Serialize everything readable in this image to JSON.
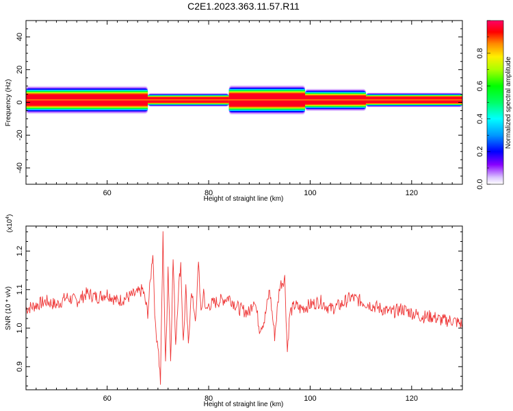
{
  "title": "C2E1.2023.363.11.57.R11",
  "chart_data": [
    {
      "type": "heatmap",
      "x": {
        "label": "Height of straight line (km)",
        "lim": [
          44,
          130
        ],
        "ticks": [
          60,
          80,
          100,
          120
        ]
      },
      "y": {
        "label": "Frequency (Hz)",
        "lim": [
          -50,
          50
        ],
        "ticks": [
          -40,
          -20,
          0,
          20,
          40
        ]
      },
      "colorbar": {
        "label": "Normalized spectral amplitude",
        "lim": [
          0,
          1
        ],
        "ticks": [
          0.0,
          0.2,
          0.4,
          0.6,
          0.8
        ],
        "tick_labels": [
          "0.0",
          "0.2",
          "0.4",
          "0.6",
          "0.8"
        ]
      },
      "band": {
        "center_hz": 1.5,
        "segments": [
          {
            "x": [
              44,
              68
            ],
            "half_width_hz": 2.5,
            "halo_hz": 6
          },
          {
            "x": [
              68,
              84
            ],
            "half_width_hz": 1.2,
            "halo_hz": 3
          },
          {
            "x": [
              84,
              99
            ],
            "half_width_hz": 3.0,
            "halo_hz": 6
          },
          {
            "x": [
              99,
              111
            ],
            "half_width_hz": 1.8,
            "halo_hz": 5
          },
          {
            "x": [
              111,
              130
            ],
            "half_width_hz": 1.5,
            "halo_hz": 3
          }
        ],
        "peak_amplitude": 0.95
      }
    },
    {
      "type": "line",
      "x": {
        "label": "Height of straight line (km)",
        "lim": [
          44,
          130
        ],
        "ticks": [
          60,
          80,
          100,
          120
        ]
      },
      "y": {
        "label": "SNR (10 * v/v)",
        "multiplier_label": "(x10",
        "multiplier_exp": "4",
        "multiplier_close": ")",
        "lim": [
          0.84,
          1.265
        ],
        "ticks": [
          0.9,
          1.0,
          1.1,
          1.2
        ],
        "tick_labels": [
          "0.9",
          "1.0",
          "1.1",
          "1.2"
        ]
      },
      "series": [
        {
          "color": "#ee3333",
          "x": [
            44,
            46,
            48,
            50,
            52,
            54,
            56,
            58,
            60,
            62,
            64,
            66,
            67,
            68,
            69,
            69.5,
            70,
            70.5,
            71,
            71.5,
            72,
            72.5,
            73,
            73.5,
            74,
            74.5,
            75,
            75.5,
            76,
            76.5,
            77,
            77.5,
            78,
            78.5,
            79,
            79.5,
            80,
            82,
            84,
            86,
            88,
            89,
            90,
            91,
            92,
            93,
            94,
            95,
            95.5,
            96,
            97,
            98,
            100,
            102,
            104,
            106,
            108,
            110,
            112,
            114,
            116,
            118,
            120,
            122,
            124,
            126,
            128,
            130
          ],
          "y": [
            1.05,
            1.06,
            1.07,
            1.06,
            1.08,
            1.07,
            1.09,
            1.08,
            1.09,
            1.07,
            1.08,
            1.09,
            1.1,
            1.04,
            1.2,
            1.0,
            0.96,
            0.86,
            1.24,
            0.9,
            1.16,
            0.92,
            1.18,
            0.96,
            1.09,
            1.17,
            0.96,
            1.1,
            0.95,
            1.09,
            1.06,
            1.02,
            1.18,
            1.03,
            1.1,
            1.04,
            1.06,
            1.07,
            1.08,
            1.05,
            1.04,
            1.08,
            1.0,
            1.02,
            1.1,
            0.98,
            1.11,
            1.13,
            0.94,
            1.04,
            1.06,
            1.05,
            1.06,
            1.07,
            1.05,
            1.06,
            1.08,
            1.07,
            1.06,
            1.05,
            1.04,
            1.05,
            1.04,
            1.03,
            1.03,
            1.02,
            1.02,
            1.01
          ]
        }
      ]
    }
  ]
}
